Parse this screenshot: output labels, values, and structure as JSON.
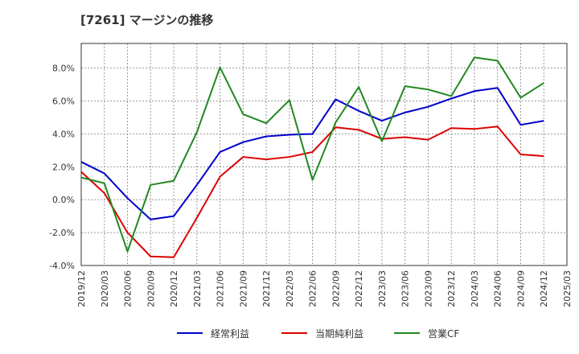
{
  "chart_data": {
    "type": "line",
    "title": "[7261]  マージンの推移",
    "x": [
      "2019/12",
      "2020/03",
      "2020/06",
      "2020/09",
      "2020/12",
      "2021/03",
      "2021/06",
      "2021/09",
      "2021/12",
      "2022/03",
      "2022/06",
      "2022/09",
      "2022/12",
      "2023/03",
      "2023/06",
      "2023/09",
      "2023/12",
      "2024/03",
      "2024/06",
      "2024/09",
      "2024/12"
    ],
    "x_ticks": [
      "2019/12",
      "2020/03",
      "2020/06",
      "2020/09",
      "2020/12",
      "2021/03",
      "2021/06",
      "2021/09",
      "2021/12",
      "2022/03",
      "2022/06",
      "2022/09",
      "2022/12",
      "2023/03",
      "2023/06",
      "2023/09",
      "2023/12",
      "2024/03",
      "2024/06",
      "2024/09",
      "2024/12",
      "2025/03"
    ],
    "y_ticks": [
      "-4.0%",
      "-2.0%",
      "0.0%",
      "2.0%",
      "4.0%",
      "6.0%",
      "8.0%"
    ],
    "ylim": [
      -4.0,
      9.5
    ],
    "grid": true,
    "legend_position": "bottom",
    "series": [
      {
        "name": "経常利益",
        "color": "#0000cc",
        "values": [
          2.3,
          1.6,
          0.1,
          -1.2,
          -1.0,
          0.9,
          2.9,
          3.5,
          3.85,
          3.95,
          4.0,
          6.1,
          5.4,
          4.8,
          5.3,
          5.65,
          6.15,
          6.6,
          6.8,
          4.55,
          4.8
        ]
      },
      {
        "name": "当期純利益",
        "color": "#dd0000",
        "values": [
          1.7,
          0.4,
          -2.0,
          -3.45,
          -3.5,
          -1.1,
          1.4,
          2.6,
          2.45,
          2.6,
          2.9,
          4.4,
          4.25,
          3.7,
          3.8,
          3.65,
          4.35,
          4.3,
          4.45,
          2.75,
          2.65
        ]
      },
      {
        "name": "営業CF",
        "color": "#228822",
        "values": [
          1.35,
          1.0,
          -3.15,
          0.9,
          1.15,
          4.1,
          8.05,
          5.2,
          4.65,
          6.05,
          1.2,
          4.7,
          6.85,
          3.55,
          6.9,
          6.7,
          6.3,
          8.65,
          8.45,
          6.2,
          7.1
        ]
      }
    ]
  }
}
